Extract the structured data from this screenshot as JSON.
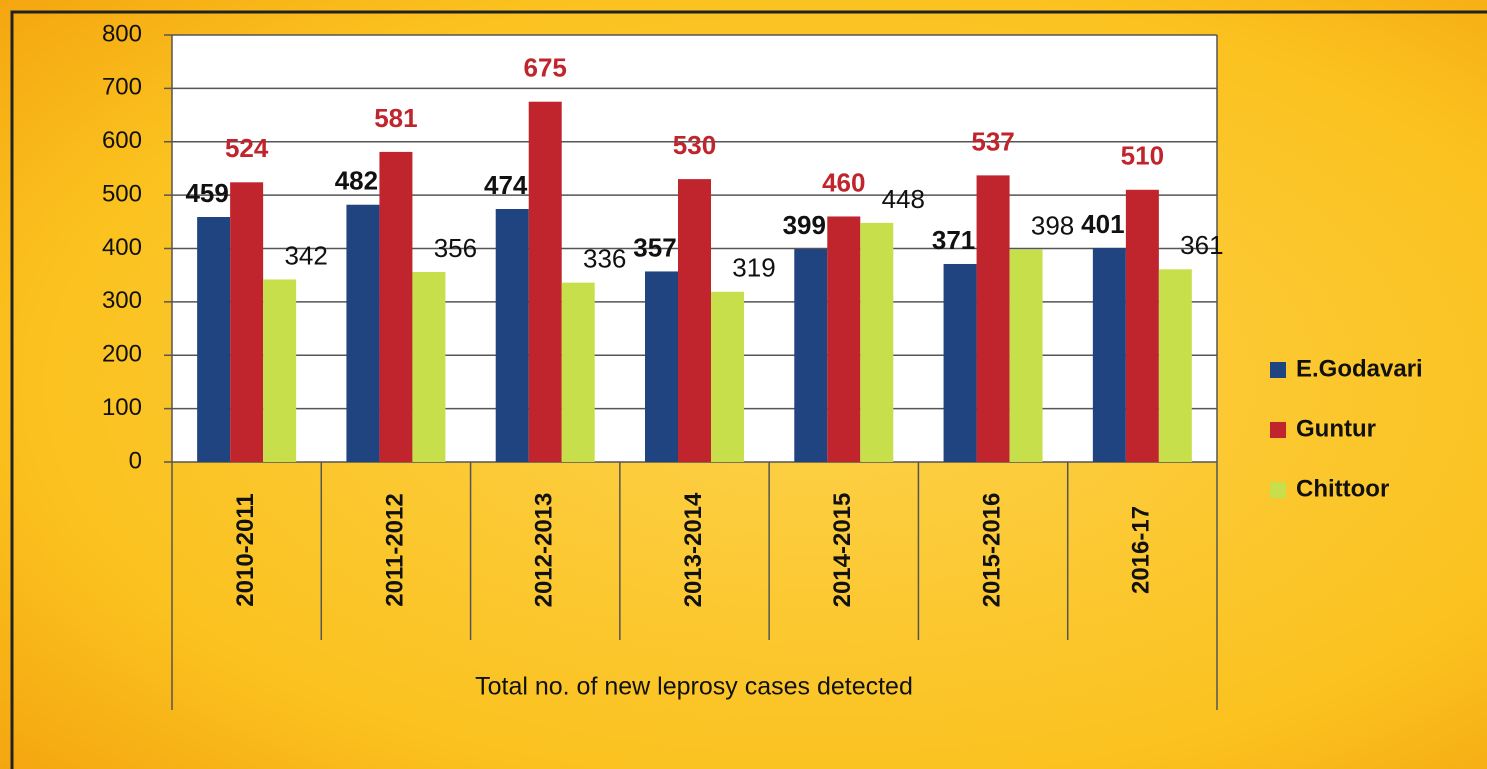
{
  "chart_data": {
    "type": "bar",
    "x_label": "Total no. of new leprosy cases detected",
    "categories": [
      "2010-2011",
      "2011-2012",
      "2012-2013",
      "2013-2014",
      "2014-2015",
      "2015-2016",
      "2016-17"
    ],
    "series": [
      {
        "name": "E.Godavari",
        "color": "#1f4480",
        "values": [
          459,
          482,
          474,
          357,
          399,
          371,
          401
        ]
      },
      {
        "name": "Guntur",
        "color": "#c0242c",
        "values": [
          524,
          581,
          675,
          530,
          460,
          537,
          510
        ]
      },
      {
        "name": "Chittoor",
        "color": "#c8df4c",
        "values": [
          342,
          356,
          336,
          319,
          448,
          398,
          361
        ]
      }
    ],
    "ylim": [
      0,
      800
    ],
    "yticks": [
      0,
      100,
      200,
      300,
      400,
      500,
      600,
      700,
      800
    ],
    "grid": true,
    "legend": "right",
    "data_labels": true
  }
}
